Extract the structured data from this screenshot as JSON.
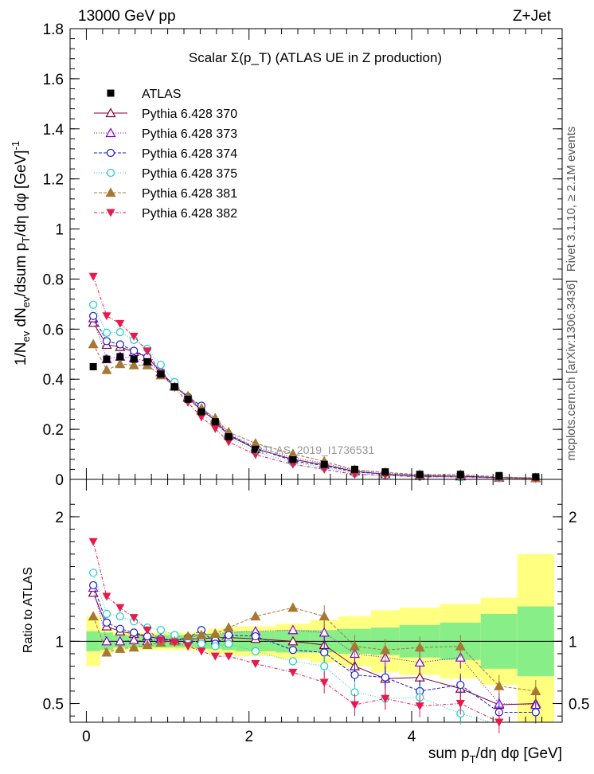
{
  "header": {
    "left": "13000 GeV pp",
    "right": "Z+Jet",
    "title": "Scalar Σ(p_T) (ATLAS UE in Z production)",
    "side_top": "Rivet 3.1.10, ≥ 2.1M events",
    "side_bottom": "mcplots.cern.ch [arXiv:1306.3436]",
    "watermark": "ATLAS_2019_I1736531"
  },
  "chart_data": {
    "type": "line",
    "xlabel": "sum p_T/dη dφ [GeV]",
    "ylabel_main": "1/N_ev dN_ev/dsum p_T/dη dφ [GeV]^-1",
    "ylabel_ratio": "Ratio to ATLAS",
    "xlim": [
      -0.2,
      5.85
    ],
    "ylim_main": [
      0,
      1.8
    ],
    "ylim_ratio": [
      0.35,
      2.3
    ],
    "x_ticks": [
      0,
      2,
      4
    ],
    "y_ticks_main": [
      0,
      0.2,
      0.4,
      0.6,
      0.8,
      1,
      1.2,
      1.4,
      1.6,
      1.8
    ],
    "y_ticks_ratio": [
      0.5,
      1,
      2
    ],
    "bin_edges": [
      0,
      0.17,
      0.33,
      0.5,
      0.67,
      0.83,
      1.0,
      1.17,
      1.33,
      1.5,
      1.67,
      1.83,
      2.33,
      2.75,
      3.1,
      3.5,
      3.85,
      4.35,
      4.85,
      5.3,
      5.75
    ],
    "x": [
      0.085,
      0.25,
      0.415,
      0.585,
      0.75,
      0.915,
      1.085,
      1.25,
      1.415,
      1.585,
      1.75,
      2.08,
      2.54,
      2.925,
      3.3,
      3.675,
      4.1,
      4.6,
      5.075,
      5.525
    ],
    "data": {
      "name": "ATLAS",
      "values": [
        0.45,
        0.48,
        0.49,
        0.48,
        0.47,
        0.42,
        0.37,
        0.32,
        0.27,
        0.23,
        0.17,
        0.12,
        0.08,
        0.06,
        0.04,
        0.03,
        0.02,
        0.02,
        0.015,
        0.01
      ]
    },
    "band_inner": [
      0.08,
      0.07,
      0.05,
      0.05,
      0.05,
      0.05,
      0.05,
      0.05,
      0.06,
      0.06,
      0.07,
      0.08,
      0.09,
      0.09,
      0.1,
      0.11,
      0.13,
      0.15,
      0.22,
      0.28
    ],
    "band_outer": [
      0.2,
      0.1,
      0.07,
      0.07,
      0.07,
      0.07,
      0.07,
      0.07,
      0.08,
      0.1,
      0.11,
      0.12,
      0.14,
      0.17,
      0.2,
      0.25,
      0.27,
      0.3,
      0.35,
      0.7
    ],
    "series": [
      {
        "name": "Pythia 6.428 370",
        "color": "#800033",
        "marker": "triangle-open",
        "dash": "",
        "ratio": [
          1.39,
          1.12,
          1.08,
          1.06,
          1.04,
          1.02,
          1.01,
          1.02,
          1.02,
          1.03,
          1.03,
          1.02,
          1.0,
          0.97,
          0.8,
          0.7,
          0.71,
          0.62,
          0.49,
          0.5
        ]
      },
      {
        "name": "Pythia 6.428 373",
        "color": "#8000cc",
        "marker": "triangle-open",
        "dash": "1,2",
        "ratio": [
          1.43,
          1.0,
          1.0,
          1.01,
          1.0,
          1.02,
          1.01,
          1.03,
          1.05,
          1.06,
          1.07,
          1.08,
          1.09,
          1.07,
          0.9,
          0.87,
          0.83,
          0.87,
          0.5,
          0.49
        ]
      },
      {
        "name": "Pythia 6.428 374",
        "color": "#1a1acc",
        "marker": "circle-open",
        "dash": "4,2",
        "ratio": [
          1.45,
          1.15,
          1.1,
          1.07,
          1.04,
          1.02,
          1.0,
          1.03,
          1.09,
          0.98,
          1.05,
          1.04,
          0.93,
          0.91,
          0.73,
          0.71,
          0.6,
          0.65,
          0.43,
          0.43
        ]
      },
      {
        "name": "Pythia 6.428 375",
        "color": "#1acccc",
        "marker": "circle-open",
        "dash": "1,2",
        "ratio": [
          1.55,
          1.22,
          1.2,
          1.16,
          1.11,
          1.09,
          1.05,
          1.02,
          0.98,
          0.96,
          0.98,
          0.92,
          0.84,
          0.8,
          0.59,
          0.54,
          0.55,
          0.42,
          0.33,
          0.3
        ]
      },
      {
        "name": "Pythia 6.428 381",
        "color": "#a67833",
        "marker": "triangle-filled",
        "dash": "4,2",
        "ratio": [
          1.2,
          0.91,
          0.94,
          0.95,
          0.97,
          0.99,
          1.0,
          1.04,
          1.05,
          1.06,
          1.11,
          1.2,
          1.27,
          1.2,
          0.96,
          0.93,
          0.95,
          0.96,
          0.64,
          0.6
        ]
      },
      {
        "name": "Pythia 6.428 382",
        "color": "#e61a4d",
        "marker": "triangle-down-filled",
        "dash": "4,2,1,2",
        "ratio": [
          1.8,
          1.36,
          1.27,
          1.19,
          1.09,
          1.01,
          0.99,
          0.96,
          0.92,
          0.88,
          0.88,
          0.82,
          0.75,
          0.67,
          0.49,
          0.54,
          0.48,
          0.5,
          0.35,
          0.3
        ]
      }
    ]
  }
}
